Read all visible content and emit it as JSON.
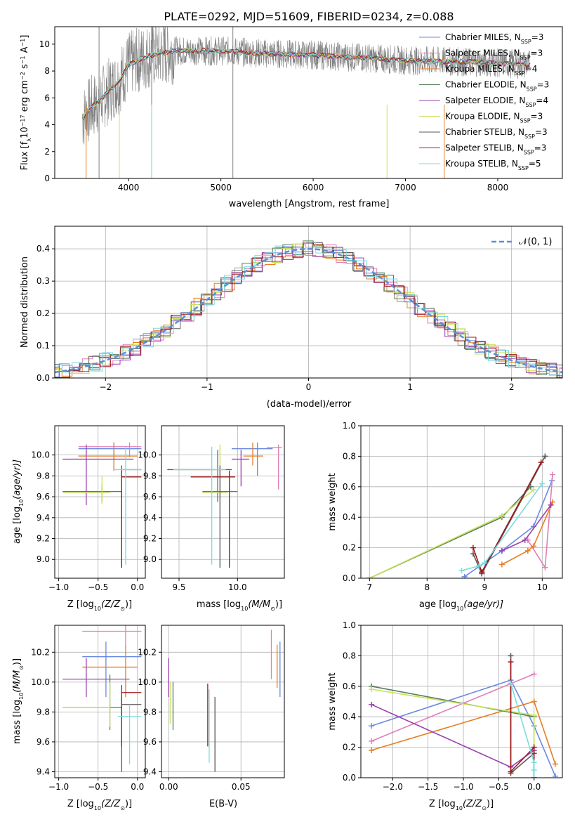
{
  "title": "PLATE=0292, MJD=51609, FIBERID=0234, z=0.088",
  "colors": {
    "chabrier_miles": "#6b8ae0",
    "salpeter_miles": "#e07fb8",
    "kroupa_miles": "#e77e22",
    "chabrier_elodie": "#5a7f5a",
    "salpeter_elodie": "#9a3fb0",
    "kroupa_elodie": "#c7e35a",
    "chabrier_stelib": "#5a5a5a",
    "salpeter_stelib": "#a11a1a",
    "kroupa_stelib": "#7adbe0",
    "gaussian": "#5b8fd9",
    "data": "#808080"
  },
  "chart_data": [
    {
      "id": "spectrum",
      "type": "line",
      "xlabel": "wavelength [Angstrom, rest frame]",
      "ylabel": "Flux [f",
      "ylabel_parts": [
        "Flux [f",
        "λ",
        "10",
        "−17",
        " erg cm",
        "−2",
        " s",
        "−1",
        " A",
        "−1",
        "]"
      ],
      "xlim": [
        3200,
        8700
      ],
      "ylim": [
        0,
        11.3
      ],
      "xticks": [
        4000,
        5000,
        6000,
        7000,
        8000
      ],
      "yticks": [
        0,
        2,
        4,
        6,
        8,
        10
      ],
      "grid": false,
      "legend_position": "right",
      "legend": [
        {
          "label": "Chabrier MILES, N",
          "sub": "SSP",
          "suffix": "=3",
          "color": "#6b8ae0"
        },
        {
          "label": "Salpeter MILES, N",
          "sub": "SSP",
          "suffix": "=3",
          "color": "#e07fb8"
        },
        {
          "label": "Kroupa MILES, N",
          "sub": "SSP",
          "suffix": "=4",
          "color": "#e77e22"
        },
        {
          "label": "Chabrier ELODIE, N",
          "sub": "SSP",
          "suffix": "=3",
          "color": "#5a7f5a"
        },
        {
          "label": "Salpeter ELODIE, N",
          "sub": "SSP",
          "suffix": "=4",
          "color": "#9a3fb0"
        },
        {
          "label": "Kroupa ELODIE, N",
          "sub": "SSP",
          "suffix": "=3",
          "color": "#c7e35a"
        },
        {
          "label": "Chabrier STELIB, N",
          "sub": "SSP",
          "suffix": "=3",
          "color": "#5a5a5a"
        },
        {
          "label": "Salpeter STELIB, N",
          "sub": "SSP",
          "suffix": "=3",
          "color": "#a11a1a"
        },
        {
          "label": "Kroupa STELIB, N",
          "sub": "SSP",
          "suffix": "=5",
          "color": "#7adbe0"
        }
      ],
      "continuum": [
        [
          3500,
          4.5
        ],
        [
          3600,
          5.3
        ],
        [
          3700,
          5.9
        ],
        [
          3800,
          6.6
        ],
        [
          3900,
          7.3
        ],
        [
          4000,
          8.5
        ],
        [
          4200,
          9.1
        ],
        [
          4500,
          9.5
        ],
        [
          5000,
          9.5
        ],
        [
          5500,
          9.3
        ],
        [
          6000,
          9.2
        ],
        [
          6500,
          9.0
        ],
        [
          7000,
          8.8
        ],
        [
          7500,
          8.7
        ],
        [
          8000,
          8.6
        ],
        [
          8300,
          8.5
        ]
      ]
    },
    {
      "id": "residuals",
      "type": "bar",
      "xlabel": "(data-model)/error",
      "ylabel": "Normed distribution",
      "xlim": [
        -2.5,
        2.5
      ],
      "ylim": [
        0,
        0.47
      ],
      "xticks": [
        -2,
        -1,
        0,
        1,
        2
      ],
      "yticks": [
        0.0,
        0.1,
        0.2,
        0.3,
        0.4
      ],
      "grid": true,
      "legend_position": "top-right",
      "legend_label": "𝒩(0, 1)",
      "bin_width": 0.1,
      "gaussian": {
        "mean": 0,
        "sigma": 1,
        "norm": 0.4
      }
    },
    {
      "id": "age_vs_Z",
      "type": "scatter",
      "xlabel": "Z [log",
      "xlabel_parts": [
        "Z [log",
        "10",
        "(Z/Z",
        "⊙",
        ")]"
      ],
      "ylabel_parts": [
        "age  [log",
        "10",
        "(age/yr)]"
      ],
      "xlim": [
        -1.05,
        0.1
      ],
      "ylim": [
        8.82,
        10.28
      ],
      "xticks": [
        -1.0,
        -0.5,
        0.0
      ],
      "yticks": [
        9.0,
        9.2,
        9.4,
        9.6,
        9.8,
        10.0
      ],
      "grid": true,
      "points": [
        {
          "x": -0.3,
          "y": 10.06,
          "x0": -0.75,
          "x1": 0.05,
          "y0": 9.95,
          "y1": 10.12,
          "color": "#6b8ae0"
        },
        {
          "x": -0.1,
          "y": 10.08,
          "x0": -0.75,
          "x1": 0.05,
          "y0": 9.98,
          "y1": 10.12,
          "color": "#e07fb8"
        },
        {
          "x": -0.3,
          "y": 9.99,
          "x0": -0.75,
          "x1": 0.0,
          "y0": 9.85,
          "y1": 10.12,
          "color": "#e77e22"
        },
        {
          "x": -0.45,
          "y": 9.65,
          "x0": -0.95,
          "x1": -0.2,
          "y0": 9.55,
          "y1": 9.72,
          "color": "#5a7f5a"
        },
        {
          "x": -0.65,
          "y": 9.96,
          "x0": -0.95,
          "x1": -0.05,
          "y0": 9.52,
          "y1": 10.1,
          "color": "#9a3fb0"
        },
        {
          "x": -0.45,
          "y": 9.64,
          "x0": -0.95,
          "x1": -0.35,
          "y0": 9.53,
          "y1": 9.8,
          "color": "#c7e35a"
        },
        {
          "x": -0.2,
          "y": 9.86,
          "x0": -0.2,
          "x1": 0.05,
          "y0": 8.92,
          "y1": 9.9,
          "color": "#5a5a5a"
        },
        {
          "x": -0.2,
          "y": 9.79,
          "x0": -0.2,
          "x1": 0.05,
          "y0": 8.92,
          "y1": 9.85,
          "color": "#a11a1a"
        },
        {
          "x": -0.15,
          "y": 9.86,
          "x0": -0.3,
          "x1": 0.05,
          "y0": 8.95,
          "y1": 10.08,
          "color": "#7adbe0"
        }
      ]
    },
    {
      "id": "age_vs_mass",
      "type": "scatter",
      "xlabel_parts": [
        "mass [log",
        "10",
        "(M/M",
        "⊙",
        ")]"
      ],
      "xlim": [
        9.35,
        10.4
      ],
      "ylim": [
        8.82,
        10.28
      ],
      "xticks": [
        9.5,
        10.0
      ],
      "yticks": [
        9.0,
        9.2,
        9.4,
        9.6,
        9.8,
        10.0
      ],
      "grid": true,
      "points": [
        {
          "x": 10.17,
          "y": 10.06,
          "x0": 9.95,
          "x1": 10.3,
          "y0": 9.8,
          "y1": 10.12,
          "color": "#6b8ae0"
        },
        {
          "x": 10.35,
          "y": 10.07,
          "x0": 10.25,
          "x1": 10.38,
          "y0": 9.67,
          "y1": 10.1,
          "color": "#e07fb8"
        },
        {
          "x": 10.13,
          "y": 9.99,
          "x0": 10.05,
          "x1": 10.22,
          "y0": 9.9,
          "y1": 10.12,
          "color": "#e77e22"
        },
        {
          "x": 9.83,
          "y": 9.65,
          "x0": 9.7,
          "x1": 10.0,
          "y0": 9.55,
          "y1": 10.05,
          "color": "#5a7f5a"
        },
        {
          "x": 10.03,
          "y": 9.96,
          "x0": 9.95,
          "x1": 10.1,
          "y0": 9.7,
          "y1": 10.05,
          "color": "#9a3fb0"
        },
        {
          "x": 9.85,
          "y": 9.64,
          "x0": 9.7,
          "x1": 9.92,
          "y0": 9.55,
          "y1": 10.1,
          "color": "#c7e35a"
        },
        {
          "x": 9.85,
          "y": 9.86,
          "x0": 9.4,
          "x1": 9.95,
          "y0": 8.92,
          "y1": 9.9,
          "color": "#5a5a5a"
        },
        {
          "x": 9.93,
          "y": 9.79,
          "x0": 9.6,
          "x1": 9.98,
          "y0": 8.92,
          "y1": 9.85,
          "color": "#a11a1a"
        },
        {
          "x": 9.78,
          "y": 9.86,
          "x0": 9.45,
          "x1": 9.9,
          "y0": 8.95,
          "y1": 10.08,
          "color": "#7adbe0"
        }
      ]
    },
    {
      "id": "mass_weight_vs_age",
      "type": "line",
      "xlabel_parts": [
        "age  [log",
        "10",
        "(age/yr)]"
      ],
      "ylabel": "mass weight",
      "xlim": [
        6.85,
        10.35
      ],
      "ylim": [
        0,
        1.0
      ],
      "xticks": [
        7,
        8,
        9,
        10
      ],
      "yticks": [
        0.0,
        0.2,
        0.4,
        0.6,
        0.8,
        1.0
      ],
      "grid": true,
      "series": [
        {
          "color": "#6b8ae0",
          "x": [
            8.65,
            9.3,
            9.85,
            10.17
          ],
          "y": [
            0.01,
            0.18,
            0.34,
            0.64
          ]
        },
        {
          "color": "#e07fb8",
          "x": [
            9.75,
            10.05,
            10.18
          ],
          "y": [
            0.25,
            0.07,
            0.68
          ]
        },
        {
          "color": "#e77e22",
          "x": [
            9.3,
            9.75,
            9.85,
            10.18
          ],
          "y": [
            0.09,
            0.18,
            0.21,
            0.5
          ]
        },
        {
          "color": "#5a7f5a",
          "x": [
            7.0,
            9.3,
            9.8
          ],
          "y": [
            0.0,
            0.4,
            0.6
          ]
        },
        {
          "color": "#9a3fb0",
          "x": [
            9.3,
            9.7,
            10.15
          ],
          "y": [
            0.18,
            0.25,
            0.48
          ]
        },
        {
          "color": "#c7e35a",
          "x": [
            7.0,
            9.3,
            9.85
          ],
          "y": [
            0.0,
            0.41,
            0.58
          ]
        },
        {
          "color": "#5a5a5a",
          "x": [
            8.8,
            8.95,
            10.05
          ],
          "y": [
            0.16,
            0.03,
            0.8
          ]
        },
        {
          "color": "#a11a1a",
          "x": [
            8.8,
            8.95,
            9.98
          ],
          "y": [
            0.2,
            0.04,
            0.76
          ]
        },
        {
          "color": "#7adbe0",
          "x": [
            8.6,
            8.9,
            9.0,
            10.0
          ],
          "y": [
            0.05,
            0.08,
            0.1,
            0.62
          ]
        }
      ]
    },
    {
      "id": "mass_vs_Z",
      "type": "scatter",
      "xlabel_parts": [
        "Z [log",
        "10",
        "(Z/Z",
        "⊙",
        ")]"
      ],
      "ylabel_parts": [
        "mass [log",
        "10",
        "(M/M",
        "⊙",
        ")]"
      ],
      "xlim": [
        -1.05,
        0.1
      ],
      "ylim": [
        9.36,
        10.38
      ],
      "xticks": [
        -1.0,
        -0.5,
        0.0
      ],
      "yticks": [
        9.4,
        9.6,
        9.8,
        10.0,
        10.2
      ],
      "grid": true,
      "points": [
        {
          "x": -0.4,
          "y": 10.17,
          "x0": -0.7,
          "x1": 0.05,
          "y0": 9.9,
          "y1": 10.27,
          "color": "#6b8ae0"
        },
        {
          "x": -0.15,
          "y": 10.34,
          "x0": -0.7,
          "x1": 0.05,
          "y0": 10.25,
          "y1": 10.38,
          "color": "#e07fb8"
        },
        {
          "x": -0.15,
          "y": 10.1,
          "x0": -0.7,
          "x1": 0.0,
          "y0": 9.9,
          "y1": 10.25,
          "color": "#e77e22"
        },
        {
          "x": -0.35,
          "y": 9.83,
          "x0": -0.95,
          "x1": -0.2,
          "y0": 9.68,
          "y1": 10.05,
          "color": "#5a7f5a"
        },
        {
          "x": -0.65,
          "y": 10.02,
          "x0": -0.95,
          "x1": -0.1,
          "y0": 9.9,
          "y1": 10.16,
          "color": "#9a3fb0"
        },
        {
          "x": -0.35,
          "y": 9.83,
          "x0": -0.95,
          "x1": -0.35,
          "y0": 9.7,
          "y1": 10.0,
          "color": "#c7e35a"
        },
        {
          "x": -0.2,
          "y": 9.85,
          "x0": -0.2,
          "x1": 0.05,
          "y0": 9.4,
          "y1": 9.9,
          "color": "#5a5a5a"
        },
        {
          "x": -0.2,
          "y": 9.93,
          "x0": -0.2,
          "x1": 0.05,
          "y0": 9.57,
          "y1": 9.98,
          "color": "#a11a1a"
        },
        {
          "x": -0.1,
          "y": 9.77,
          "x0": -0.25,
          "x1": 0.05,
          "y0": 9.45,
          "y1": 9.85,
          "color": "#7adbe0"
        }
      ]
    },
    {
      "id": "mass_vs_ebv",
      "type": "scatter",
      "xlabel": "E(B-V)",
      "xlim": [
        -0.005,
        0.08
      ],
      "ylim": [
        9.36,
        10.38
      ],
      "xticks": [
        0.0,
        0.05
      ],
      "yticks": [
        9.4,
        9.6,
        9.8,
        10.0,
        10.2
      ],
      "grid": true,
      "points": [
        {
          "x": 0.077,
          "y": 10.17,
          "y0": 9.9,
          "y1": 10.27,
          "color": "#6b8ae0"
        },
        {
          "x": 0.071,
          "y": 10.34,
          "y0": 10.02,
          "y1": 10.35,
          "color": "#e07fb8"
        },
        {
          "x": 0.075,
          "y": 10.1,
          "y0": 9.96,
          "y1": 10.25,
          "color": "#e77e22"
        },
        {
          "x": 0.003,
          "y": 9.83,
          "y0": 9.68,
          "y1": 10.0,
          "color": "#5a7f5a"
        },
        {
          "x": 0.0,
          "y": 10.02,
          "y0": 9.9,
          "y1": 10.16,
          "color": "#9a3fb0"
        },
        {
          "x": 0.001,
          "y": 9.83,
          "y0": 9.72,
          "y1": 10.0,
          "color": "#c7e35a"
        },
        {
          "x": 0.032,
          "y": 9.85,
          "y0": 9.4,
          "y1": 9.9,
          "color": "#5a5a5a"
        },
        {
          "x": 0.027,
          "y": 9.93,
          "y0": 9.57,
          "y1": 9.99,
          "color": "#a11a1a"
        },
        {
          "x": 0.028,
          "y": 9.77,
          "y0": 9.46,
          "y1": 9.95,
          "color": "#7adbe0"
        }
      ]
    },
    {
      "id": "mass_weight_vs_Z",
      "type": "line",
      "xlabel_parts": [
        "Z [log",
        "10",
        "(Z/Z",
        "⊙",
        ")]"
      ],
      "ylabel": "mass weight",
      "xlim": [
        -2.45,
        0.4
      ],
      "ylim": [
        0,
        1.0
      ],
      "xticks": [
        -2.0,
        -1.5,
        -1.0,
        -0.5,
        0.0
      ],
      "yticks": [
        0.0,
        0.2,
        0.4,
        0.6,
        0.8,
        1.0
      ],
      "grid": true,
      "series": [
        {
          "color": "#6b8ae0",
          "x": [
            -2.3,
            -0.33,
            0.0,
            0.3
          ],
          "y": [
            0.34,
            0.64,
            0.34,
            0.01
          ]
        },
        {
          "color": "#e07fb8",
          "x": [
            -2.3,
            0.0
          ],
          "y": [
            0.24,
            0.68
          ]
        },
        {
          "color": "#e77e22",
          "x": [
            -2.3,
            0.0,
            0.3
          ],
          "y": [
            0.18,
            0.5,
            0.09
          ]
        },
        {
          "color": "#5a7f5a",
          "x": [
            -2.3,
            0.0,
            0.0
          ],
          "y": [
            0.6,
            0.4,
            0.0
          ]
        },
        {
          "color": "#9a3fb0",
          "x": [
            -2.3,
            -0.33,
            0.0
          ],
          "y": [
            0.48,
            0.07,
            0.18
          ]
        },
        {
          "color": "#c7e35a",
          "x": [
            -2.3,
            0.0,
            0.0
          ],
          "y": [
            0.58,
            0.41,
            0.0
          ]
        },
        {
          "color": "#5a5a5a",
          "x": [
            -0.33,
            -0.33,
            0.0,
            0.0
          ],
          "y": [
            0.8,
            0.03,
            0.16,
            0.0
          ]
        },
        {
          "color": "#a11a1a",
          "x": [
            -0.33,
            -0.33,
            0.0,
            0.0
          ],
          "y": [
            0.76,
            0.04,
            0.2,
            0.0
          ]
        },
        {
          "color": "#7adbe0",
          "x": [
            -0.33,
            0.0,
            0.0,
            0.0
          ],
          "y": [
            0.62,
            0.1,
            0.05,
            0.0
          ]
        }
      ]
    }
  ]
}
